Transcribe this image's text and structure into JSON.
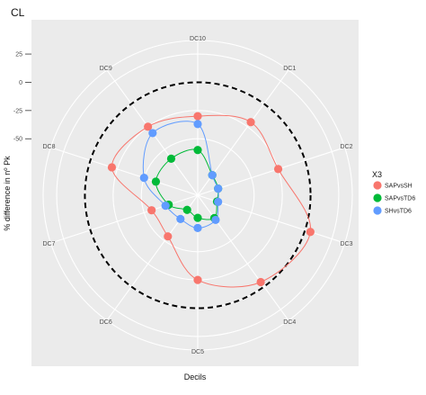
{
  "chart_data": {
    "type": "line",
    "coordinate_system": "polar",
    "title": "CL",
    "xlabel": "Decils",
    "ylabel": "% difference in nº Pk",
    "categories": [
      "DC1",
      "DC2",
      "DC3",
      "DC4",
      "DC5",
      "DC6",
      "DC7",
      "DC8",
      "DC9",
      "DC10"
    ],
    "y_ticks": [
      25,
      0,
      -25,
      -50
    ],
    "ylim": [
      -100,
      37
    ],
    "reference_circle": {
      "value": 0,
      "style": "dashed"
    },
    "grid": true,
    "legend_title": "X3",
    "legend_position": "right",
    "series": [
      {
        "name": "SAPvsSH",
        "color": "#F8766D",
        "values": [
          -20,
          -25,
          5,
          -5,
          -25,
          -55,
          -57,
          -20,
          -25,
          -30
        ]
      },
      {
        "name": "SAPvsTD6",
        "color": "#00BA38",
        "values": [
          -78,
          -81,
          -82,
          -75,
          -80,
          -84,
          -73,
          -61,
          -60,
          -60
        ]
      },
      {
        "name": "SHvsTD6",
        "color": "#619CFF",
        "values": [
          -78,
          -81,
          -81,
          -73,
          -71,
          -74,
          -70,
          -50,
          -32,
          -37
        ]
      }
    ]
  }
}
